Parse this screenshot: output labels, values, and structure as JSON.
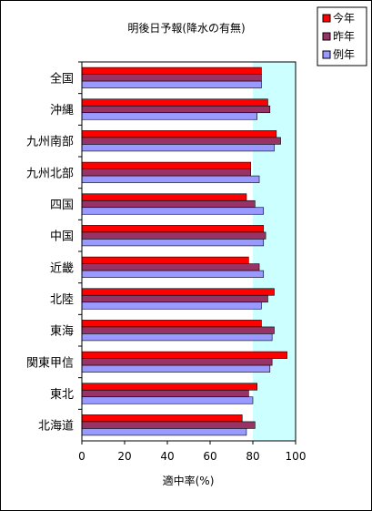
{
  "chart_data": {
    "type": "bar",
    "orientation": "horizontal",
    "title": "明後日予報(降水の有無)",
    "xlabel": "適中率(%)",
    "ylabel": "",
    "xlim": [
      0,
      100
    ],
    "xticks": [
      0,
      20,
      40,
      60,
      80,
      100
    ],
    "categories": [
      "全国",
      "沖縄",
      "九州南部",
      "九州北部",
      "四国",
      "中国",
      "近畿",
      "北陸",
      "東海",
      "関東甲信",
      "東北",
      "北海道"
    ],
    "series": [
      {
        "name": "今年",
        "color": "#ff0000",
        "values": [
          84,
          87,
          91,
          79,
          77,
          85,
          78,
          90,
          84,
          96,
          82,
          75
        ]
      },
      {
        "name": "昨年",
        "color": "#993366",
        "values": [
          84,
          88,
          93,
          79,
          81,
          86,
          83,
          87,
          90,
          89,
          78,
          81
        ]
      },
      {
        "name": "例年",
        "color": "#9999ff",
        "values": [
          84,
          82,
          90,
          83,
          85,
          85,
          85,
          84,
          89,
          88,
          80,
          77
        ]
      }
    ],
    "plot_background": "#ccffff",
    "plot_background_start": 80,
    "grid": false,
    "legend_position": "top-right"
  }
}
